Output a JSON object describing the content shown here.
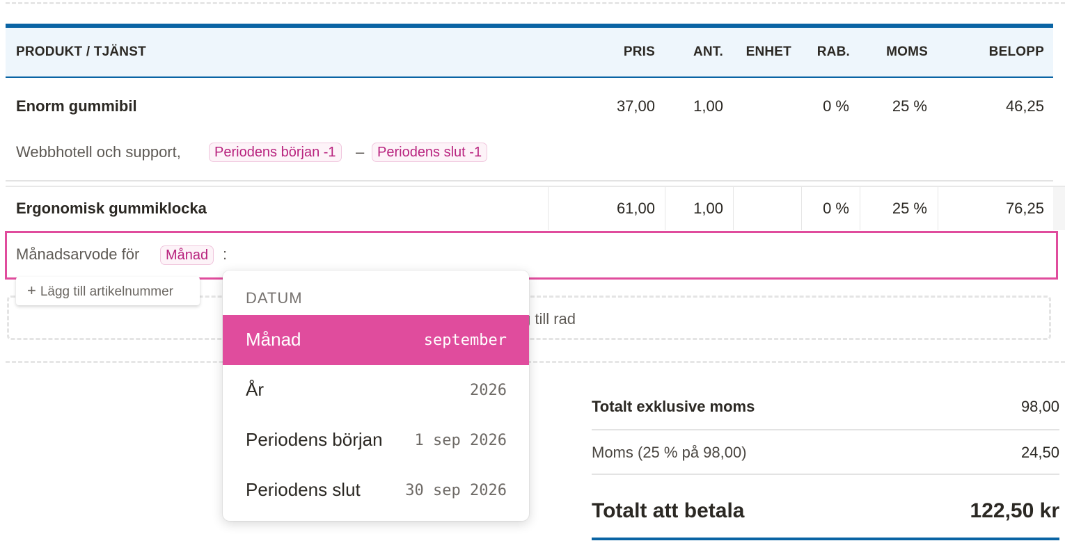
{
  "table": {
    "headers": {
      "product": "PRODUKT / TJÄNST",
      "price": "PRIS",
      "qty": "ANT.",
      "unit": "ENHET",
      "discount": "RAB.",
      "vat": "MOMS",
      "amount": "BELOPP"
    },
    "rows": [
      {
        "name": "Enorm gummibil",
        "price": "37,00",
        "qty": "1,00",
        "unit": "",
        "discount": "0 %",
        "vat": "25 %",
        "amount": "46,25",
        "description": "Webbhotell och support,",
        "tag_start": "Periodens början -1",
        "separator": "–",
        "tag_end": "Periodens slut -1"
      },
      {
        "name": "Ergonomisk gummiklocka",
        "price": "61,00",
        "qty": "1,00",
        "unit": "",
        "discount": "0 %",
        "vat": "25 %",
        "amount": "76,25",
        "description": "Månadsarvode för",
        "tag": "Månad",
        "suffix": ":"
      }
    ],
    "add_article_number": "Lägg till artikelnummer",
    "add_article_icon": "plus-icon",
    "add_row": "g till rad"
  },
  "dropdown": {
    "header": "DATUM",
    "items": [
      {
        "label": "Månad",
        "value": "september",
        "active": true
      },
      {
        "label": "År",
        "value": "2026",
        "active": false
      },
      {
        "label": "Periodens början",
        "value": "1 sep 2026",
        "active": false
      },
      {
        "label": "Periodens slut",
        "value": "30 sep 2026",
        "active": false
      }
    ]
  },
  "summary": {
    "excl_label": "Totalt exklusive moms",
    "excl_value": "98,00",
    "vat_label": "Moms (25 % på 98,00)",
    "vat_value": "24,50",
    "total_label": "Totalt att betala",
    "total_value": "122,50 kr"
  },
  "colors": {
    "accent": "#e04c9d",
    "brand_blue": "#0a64a4",
    "header_bg": "#eef6fc"
  }
}
